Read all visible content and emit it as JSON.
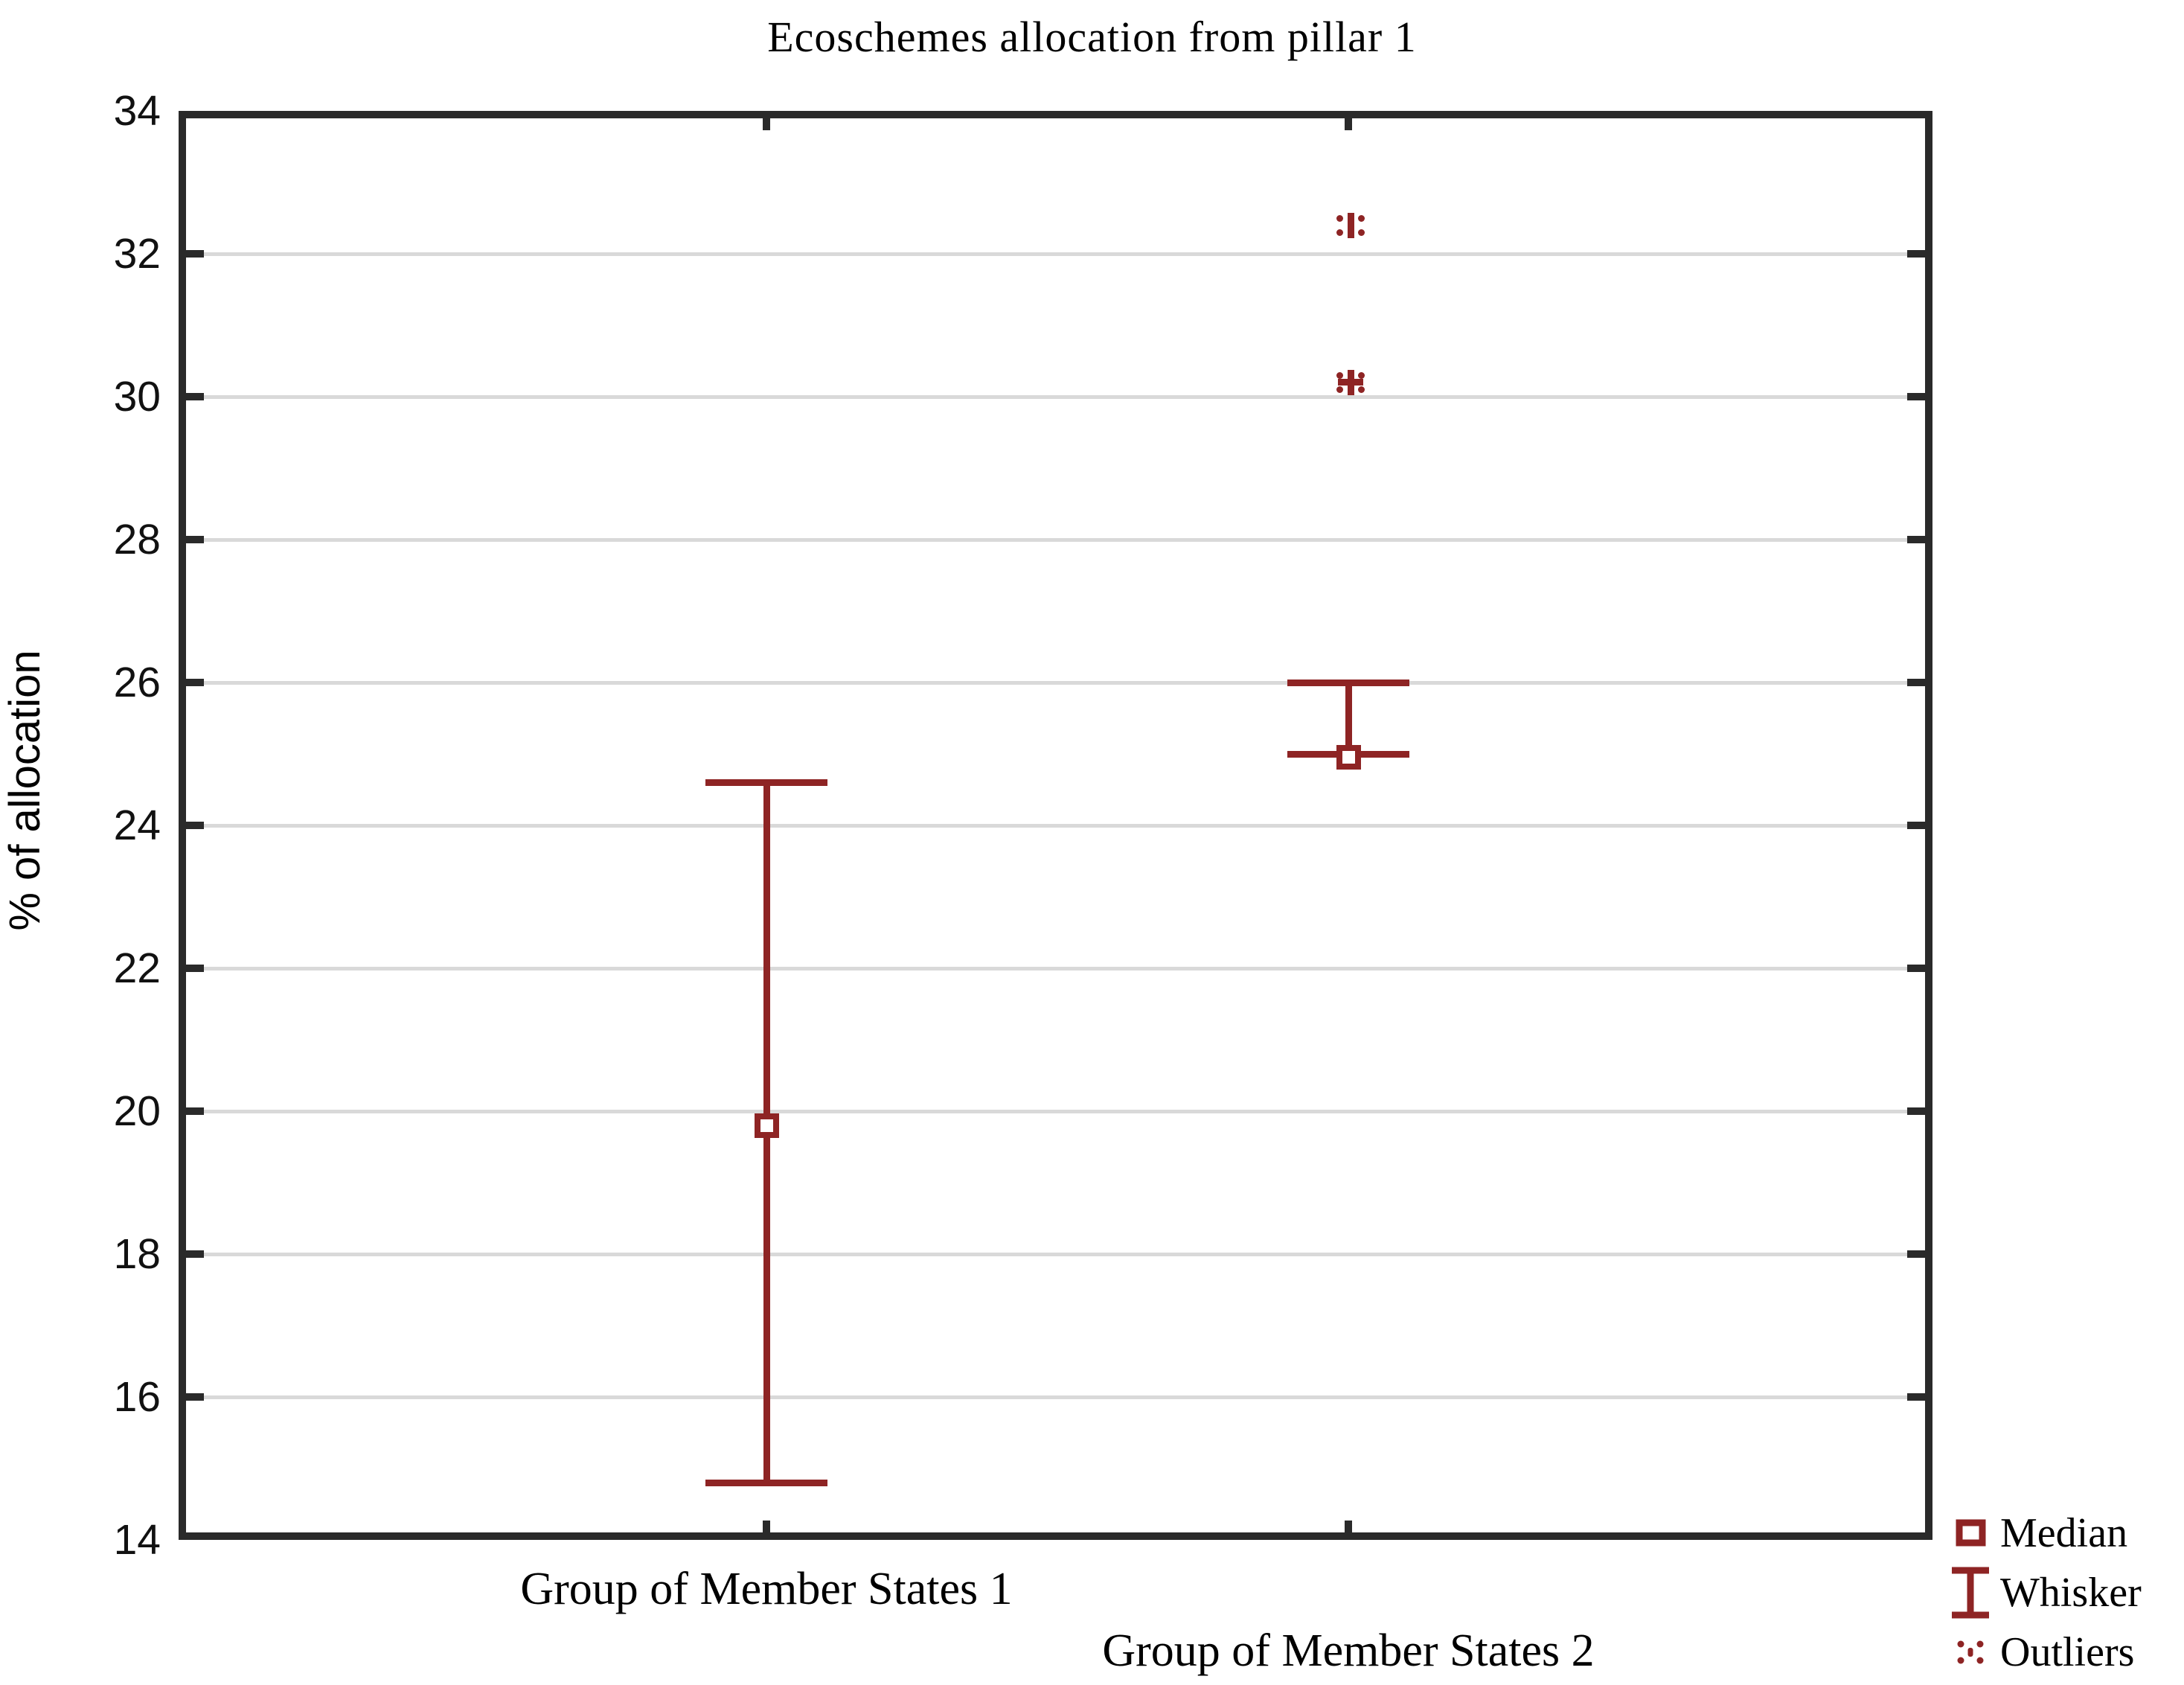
{
  "title": "Ecoschemes allocation from pillar 1",
  "y_axis": {
    "label": "% of allocation",
    "tick_labels": [
      "14",
      "16",
      "18",
      "20",
      "22",
      "24",
      "26",
      "28",
      "30",
      "32",
      "34"
    ]
  },
  "x_axis": {
    "categories": [
      "Group of Member States 1",
      "Group of Member States 2"
    ]
  },
  "legend": {
    "items": [
      {
        "icon": "median-square-icon",
        "label": "Median"
      },
      {
        "icon": "whisker-icon",
        "label": "Whisker"
      },
      {
        "icon": "outliers-icon",
        "label": "Outliers"
      }
    ]
  },
  "colors": {
    "series": "#8e2424",
    "frame": "#2a2a2a",
    "gridline": "#d9d9d9",
    "text": "#000000",
    "background": "#ffffff"
  },
  "chart_data": {
    "type": "box",
    "title": "Ecoschemes allocation from pillar 1",
    "xlabel": "",
    "ylabel": "% of allocation",
    "ylim": [
      14,
      34
    ],
    "ytick_step": 2,
    "grid": "horizontal",
    "legend_position": "bottom-right",
    "groups": [
      {
        "category": "Group of Member States 1",
        "median": 19.8,
        "whisker_low": 14.8,
        "whisker_high": 24.6,
        "outliers": []
      },
      {
        "category": "Group of Member States 2",
        "median": 25.0,
        "whisker_low": 25.0,
        "whisker_high": 26.0,
        "outliers": [
          {
            "value": 30.2,
            "marker": "cross-dots-marker"
          },
          {
            "value": 32.4,
            "marker": "bar-dots-marker"
          }
        ]
      }
    ]
  }
}
